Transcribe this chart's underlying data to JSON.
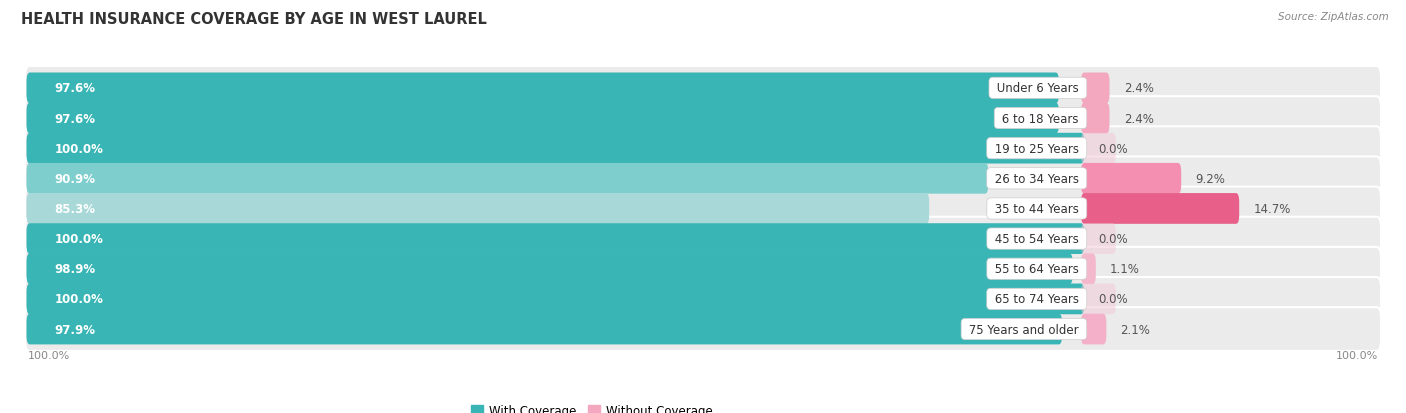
{
  "title": "HEALTH INSURANCE COVERAGE BY AGE IN WEST LAUREL",
  "source": "Source: ZipAtlas.com",
  "categories": [
    "Under 6 Years",
    "6 to 18 Years",
    "19 to 25 Years",
    "26 to 34 Years",
    "35 to 44 Years",
    "45 to 54 Years",
    "55 to 64 Years",
    "65 to 74 Years",
    "75 Years and older"
  ],
  "with_coverage": [
    97.6,
    97.6,
    100.0,
    90.9,
    85.3,
    100.0,
    98.9,
    100.0,
    97.9
  ],
  "without_coverage": [
    2.4,
    2.4,
    0.0,
    9.2,
    14.7,
    0.0,
    1.1,
    0.0,
    2.1
  ],
  "teal_colors": [
    "#3ab5b5",
    "#3ab5b5",
    "#3ab5b5",
    "#7ecece",
    "#a8d8d8",
    "#3ab5b5",
    "#3ab5b5",
    "#3ab5b5",
    "#3ab5b5"
  ],
  "pink_colors": [
    "#f4a8c0",
    "#f4a8c0",
    "#f4c8d8",
    "#f48fb1",
    "#e8608a",
    "#f4c8d8",
    "#f4b8cc",
    "#f4c8d8",
    "#f4b0c8"
  ],
  "row_bg": "#ebebeb",
  "title_fontsize": 10.5,
  "label_fontsize": 8.5,
  "tick_fontsize": 8,
  "legend_fontsize": 8.5,
  "source_fontsize": 7.5,
  "with_label_color": "white",
  "without_label_color": "#555555",
  "category_label_color": "#333333"
}
